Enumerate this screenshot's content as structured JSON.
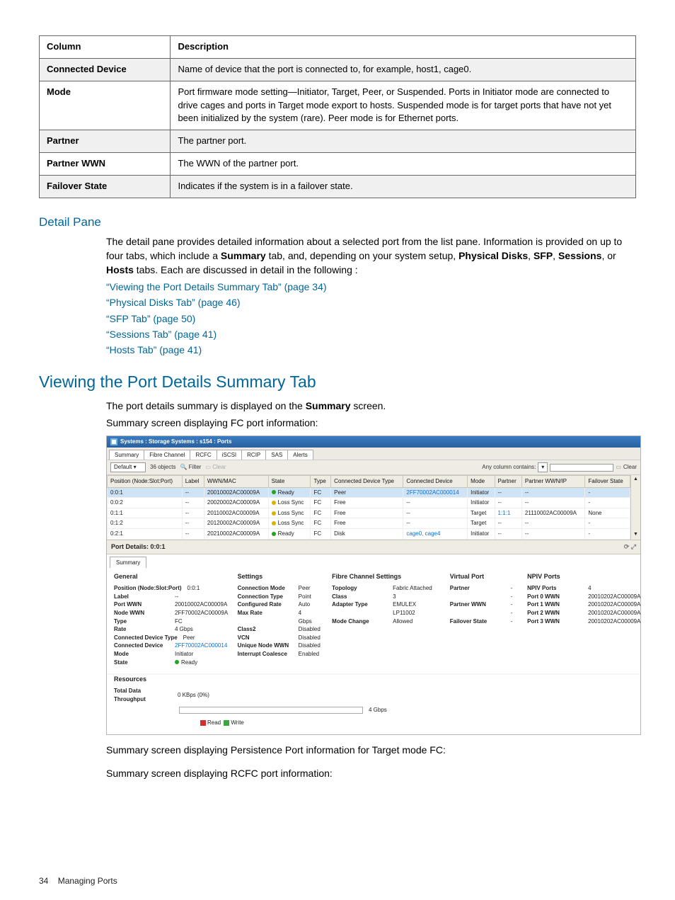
{
  "colors": {
    "heading": "#006699",
    "link": "#006699",
    "titlebar_gradient_top": "#3a7cc2",
    "titlebar_gradient_bottom": "#2a5f9e",
    "grid_header_bg": "#efece4",
    "row_selected_bg": "#cfe3f7",
    "dot_green": "#1fa51f",
    "dot_yellow": "#d8b400",
    "legend_read": "#d42f2f",
    "legend_write": "#3aa93a",
    "table_border": "#666666"
  },
  "typography": {
    "body_fontsize_pt": 10,
    "heading1_fontsize_pt": 17,
    "heading2_fontsize_pt": 13,
    "screenshot_fontsize_pt": 6
  },
  "descTable": {
    "header": {
      "col": "Column",
      "desc": "Description"
    },
    "rows": [
      {
        "col": "Connected Device",
        "desc": "Name of device that the port is connected to, for example, host1, cage0."
      },
      {
        "col": "Mode",
        "desc": "Port firmware mode setting—Initiator, Target, Peer, or Suspended. Ports in Initiator mode are connected to drive cages and ports in Target mode export to hosts. Suspended mode is for target ports that have not yet been initialized by the system (rare). Peer mode is for Ethernet ports."
      },
      {
        "col": "Partner",
        "desc": "The partner port."
      },
      {
        "col": "Partner WWN",
        "desc": "The WWN of the partner port."
      },
      {
        "col": "Failover State",
        "desc": "Indicates if the system is in a failover state."
      }
    ]
  },
  "detailPane": {
    "heading": "Detail Pane",
    "para": "The detail pane provides detailed information about a selected port from the list pane. Information is provided on up to four tabs, which include a <b>Summary</b> tab, and, depending on your system setup, <b>Physical Disks</b>, <b>SFP</b>, <b>Sessions</b>, or <b>Hosts</b> tabs. Each are discussed in detail in the following :",
    "links": [
      "“Viewing the Port Details Summary Tab” (page 34)",
      "“Physical Disks Tab” (page 46)",
      "“SFP Tab” (page 50)",
      "“Sessions Tab” (page 41)",
      "“Hosts Tab” (page 41)"
    ]
  },
  "section": {
    "heading": "Viewing the Port Details Summary Tab",
    "p1": "The port details summary is displayed on the <b>Summary</b> screen.",
    "p2": "Summary screen displaying FC port information:",
    "after1": "Summary screen displaying Persistence Port information for Target mode FC:",
    "after2": "Summary screen displaying RCFC port information:"
  },
  "screenshot": {
    "title": "Systems : Storage Systems : s154 : Ports",
    "mainTabs": [
      "Summary",
      "Fibre Channel",
      "RCFC",
      "iSCSI",
      "RCIP",
      "SAS",
      "Alerts"
    ],
    "toolbar": {
      "default": "Default",
      "objects": "36 objects",
      "filter": "Filter",
      "clearToolbar": "Clear",
      "any": "Any column contains:",
      "clear": "Clear"
    },
    "grid": {
      "columns": [
        "Position (Node:Slot:Port)",
        "Label",
        "WWN/MAC",
        "State",
        "Type",
        "Connected Device Type",
        "Connected Device",
        "Mode",
        "Partner",
        "Partner WWN/IP",
        "Failover State"
      ],
      "rows": [
        {
          "pos": "0:0:1",
          "label": "--",
          "wwn": "20010002AC00009A",
          "state": "Ready",
          "state_color": "#1fa51f",
          "type": "FC",
          "cdt": "Peer",
          "cd": "2FF70002AC000014",
          "cd_link": true,
          "mode": "Initiator",
          "partner": "--",
          "pwwn": "--",
          "fs": "-",
          "sel": true
        },
        {
          "pos": "0:0:2",
          "label": "--",
          "wwn": "20020002AC00009A",
          "state": "Loss Sync",
          "state_color": "#d8b400",
          "type": "FC",
          "cdt": "Free",
          "cd": "--",
          "mode": "Initiator",
          "partner": "--",
          "pwwn": "--",
          "fs": "-"
        },
        {
          "pos": "0:1:1",
          "label": "--",
          "wwn": "20110002AC00009A",
          "state": "Loss Sync",
          "state_color": "#d8b400",
          "type": "FC",
          "cdt": "Free",
          "cd": "--",
          "mode": "Target",
          "partner": "1:1:1",
          "partner_link": true,
          "pwwn": "21110002AC00009A",
          "fs": "None"
        },
        {
          "pos": "0:1:2",
          "label": "--",
          "wwn": "20120002AC00009A",
          "state": "Loss Sync",
          "state_color": "#d8b400",
          "type": "FC",
          "cdt": "Free",
          "cd": "--",
          "mode": "Target",
          "partner": "--",
          "pwwn": "--",
          "fs": "-"
        },
        {
          "pos": "0:2:1",
          "label": "--",
          "wwn": "20210002AC00009A",
          "state": "Ready",
          "state_color": "#1fa51f",
          "type": "FC",
          "cdt": "Disk",
          "cd": "cage0, cage4",
          "cd_link": true,
          "mode": "Initiator",
          "partner": "--",
          "pwwn": "--",
          "fs": "-"
        }
      ]
    },
    "portDetails": {
      "title": "Port Details: 0:0:1",
      "subTabs": [
        "Summary"
      ],
      "groups": {
        "general": {
          "title": "General",
          "kv": [
            [
              "Position (Node:Slot:Port)",
              "0:0:1"
            ],
            [
              "Label",
              "--"
            ],
            [
              "Port WWN",
              "20010002AC00009A"
            ],
            [
              "Node WWN",
              "2FF70002AC00009A"
            ],
            [
              "Type",
              "FC"
            ],
            [
              "Rate",
              "4 Gbps"
            ],
            [
              "Connected Device Type",
              "Peer"
            ],
            [
              "Connected Device",
              "2FF70002AC000014",
              "link"
            ],
            [
              "Mode",
              "Initiator"
            ],
            [
              "State",
              "Ready",
              "green"
            ]
          ]
        },
        "settings": {
          "title": "Settings",
          "kv": [
            [
              "Connection Mode",
              "Peer"
            ],
            [
              "Connection Type",
              "Point"
            ],
            [
              "Configured Rate",
              "Auto"
            ],
            [
              "Max Rate",
              "4 Gbps"
            ],
            [
              "Class2",
              "Disabled"
            ],
            [
              "VCN",
              "Disabled"
            ],
            [
              "Unique Node WWN",
              "Disabled"
            ],
            [
              "Interrupt Coalesce",
              "Enabled"
            ]
          ]
        },
        "fc": {
          "title": "Fibre Channel Settings",
          "kv": [
            [
              "Topology",
              "Fabric Attached"
            ],
            [
              "Class",
              "3"
            ],
            [
              "Adapter Type",
              "EMULEX LP11002"
            ],
            [
              "Mode Change",
              "Allowed"
            ]
          ]
        },
        "vport": {
          "title": "Virtual Port",
          "kv": [
            [
              "Partner",
              "--"
            ],
            [
              "Partner WWN",
              "--"
            ],
            [
              "Failover State",
              "-"
            ]
          ]
        },
        "npiv": {
          "title": "NPIV Ports",
          "kv": [
            [
              "NPIV Ports",
              "4"
            ],
            [
              "Port 0 WWN",
              "20010202AC00009A"
            ],
            [
              "Port 1 WWN",
              "20010202AC00009A"
            ],
            [
              "Port 2 WWN",
              "20010202AC00009A"
            ],
            [
              "Port 3 WWN",
              "20010202AC00009A"
            ]
          ]
        }
      },
      "resources": {
        "title": "Resources",
        "throughput_label": "Total Data Throughput",
        "throughput_value": "0 KBps (0%)",
        "scale": "4 Gbps",
        "legend_read": "Read",
        "legend_write": "Write"
      }
    }
  },
  "footer": {
    "page": "34",
    "section": "Managing Ports"
  }
}
